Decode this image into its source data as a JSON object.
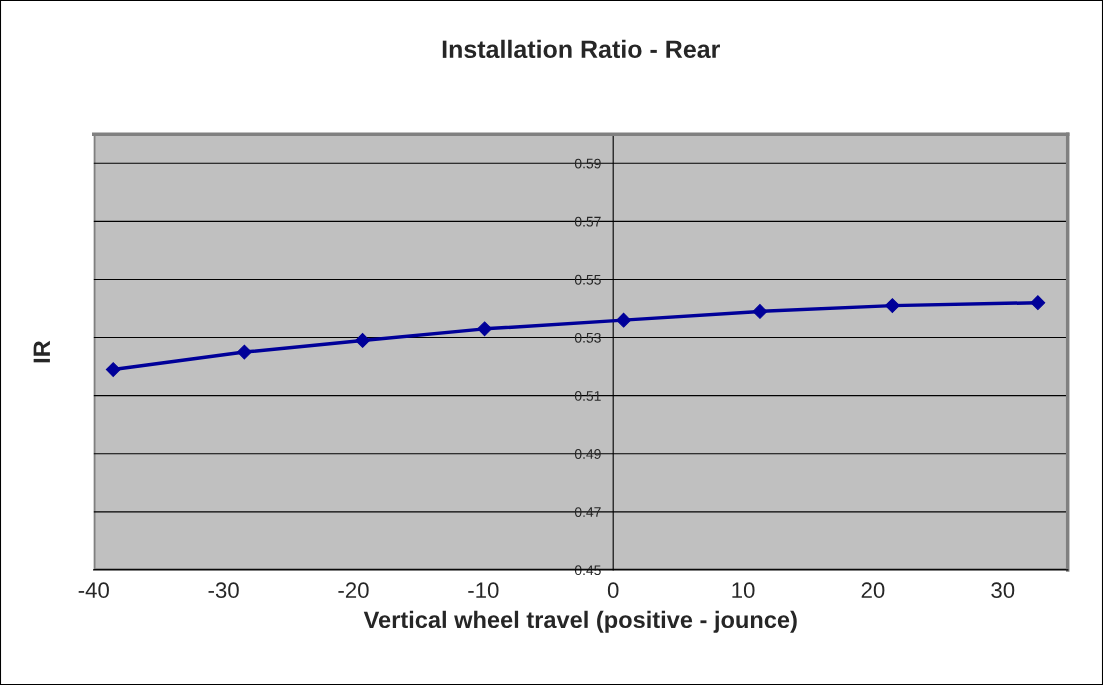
{
  "chart_data": {
    "type": "line",
    "title": "Installation Ratio - Rear",
    "xlabel": "Vertical wheel travel (positive - jounce)",
    "ylabel": "IR",
    "x": [
      -38.5,
      -28.4,
      -19.3,
      -9.9,
      0.8,
      11.3,
      21.5,
      32.7
    ],
    "series": [
      {
        "color": "#000099",
        "values": [
          0.519,
          0.525,
          0.529,
          0.533,
          0.536,
          0.539,
          0.541,
          0.542
        ]
      }
    ],
    "xlim": [
      -40,
      35
    ],
    "xticks": [
      -40,
      -30,
      -20,
      -10,
      0,
      10,
      20,
      30
    ],
    "ylim": [
      0.45,
      0.6
    ],
    "yticks": [
      0.45,
      0.47,
      0.49,
      0.51,
      0.53,
      0.55,
      0.57,
      0.59
    ],
    "grid": "y",
    "marker": "diamond",
    "line_style": "solid",
    "legend": false
  }
}
